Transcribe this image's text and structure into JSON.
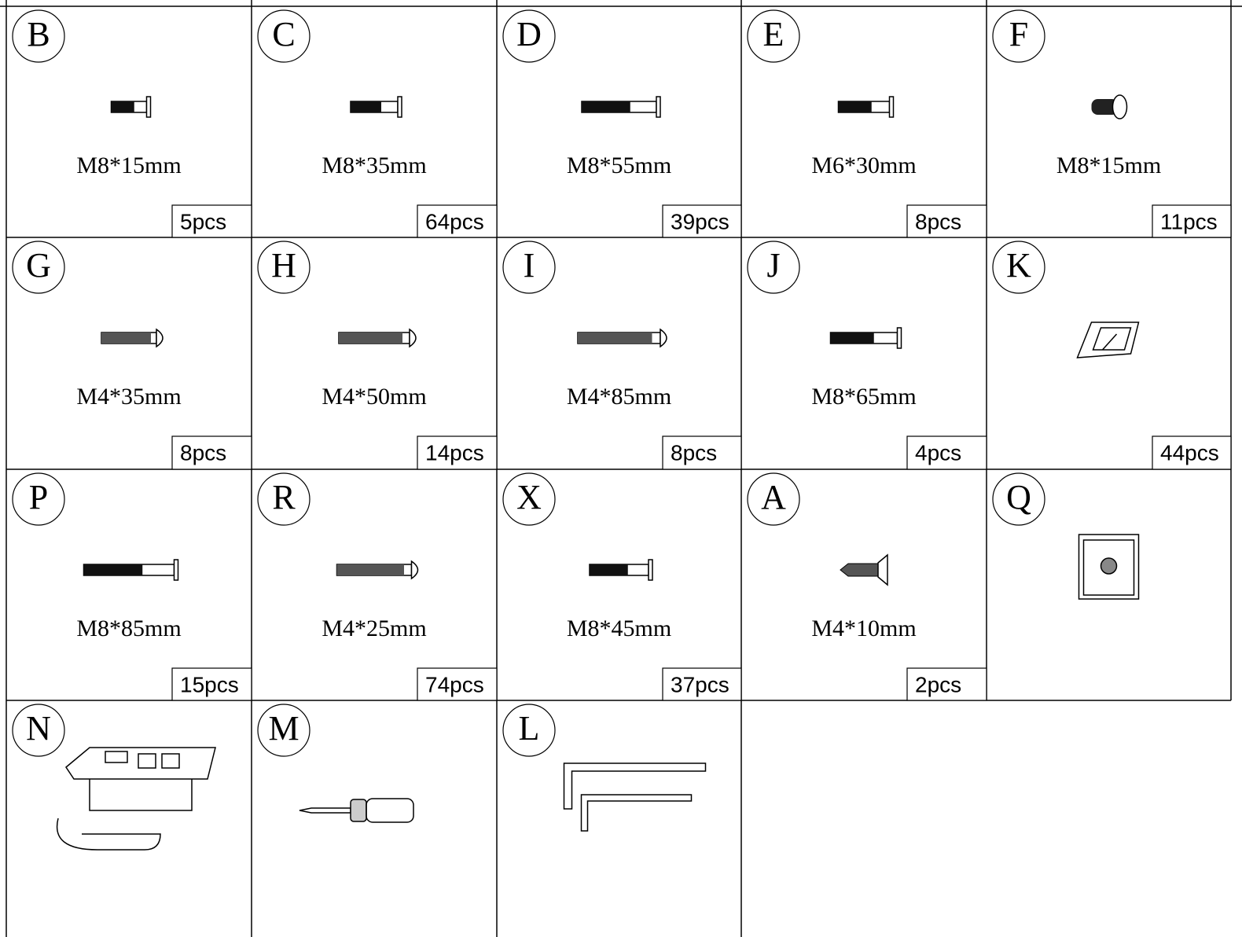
{
  "parts": [
    {
      "letter": "B",
      "size": "M8*15mm",
      "quantity": "5pcs"
    },
    {
      "letter": "C",
      "size": "M8*35mm",
      "quantity": "64pcs"
    },
    {
      "letter": "D",
      "size": "M8*55mm",
      "quantity": "39pcs"
    },
    {
      "letter": "E",
      "size": "M6*30mm",
      "quantity": "8pcs"
    },
    {
      "letter": "F",
      "size": "M8*15mm",
      "quantity": "11pcs"
    },
    {
      "letter": "G",
      "size": "M4*35mm",
      "quantity": "8pcs"
    },
    {
      "letter": "H",
      "size": "M4*50mm",
      "quantity": "14pcs"
    },
    {
      "letter": "I",
      "size": "M4*85mm",
      "quantity": "8pcs"
    },
    {
      "letter": "J",
      "size": "M8*65mm",
      "quantity": "4pcs"
    },
    {
      "letter": "K",
      "quantity": "44pcs"
    },
    {
      "letter": "P",
      "size": "M8*85mm",
      "quantity": "15pcs"
    },
    {
      "letter": "R",
      "size": "M4*25mm",
      "quantity": "74pcs"
    },
    {
      "letter": "X",
      "size": "M8*45mm",
      "quantity": "37pcs"
    },
    {
      "letter": "A",
      "size": "M4*10mm",
      "quantity": "2pcs"
    },
    {
      "letter": "Q"
    },
    {
      "letter": "N"
    },
    {
      "letter": "M"
    },
    {
      "letter": "L"
    }
  ]
}
